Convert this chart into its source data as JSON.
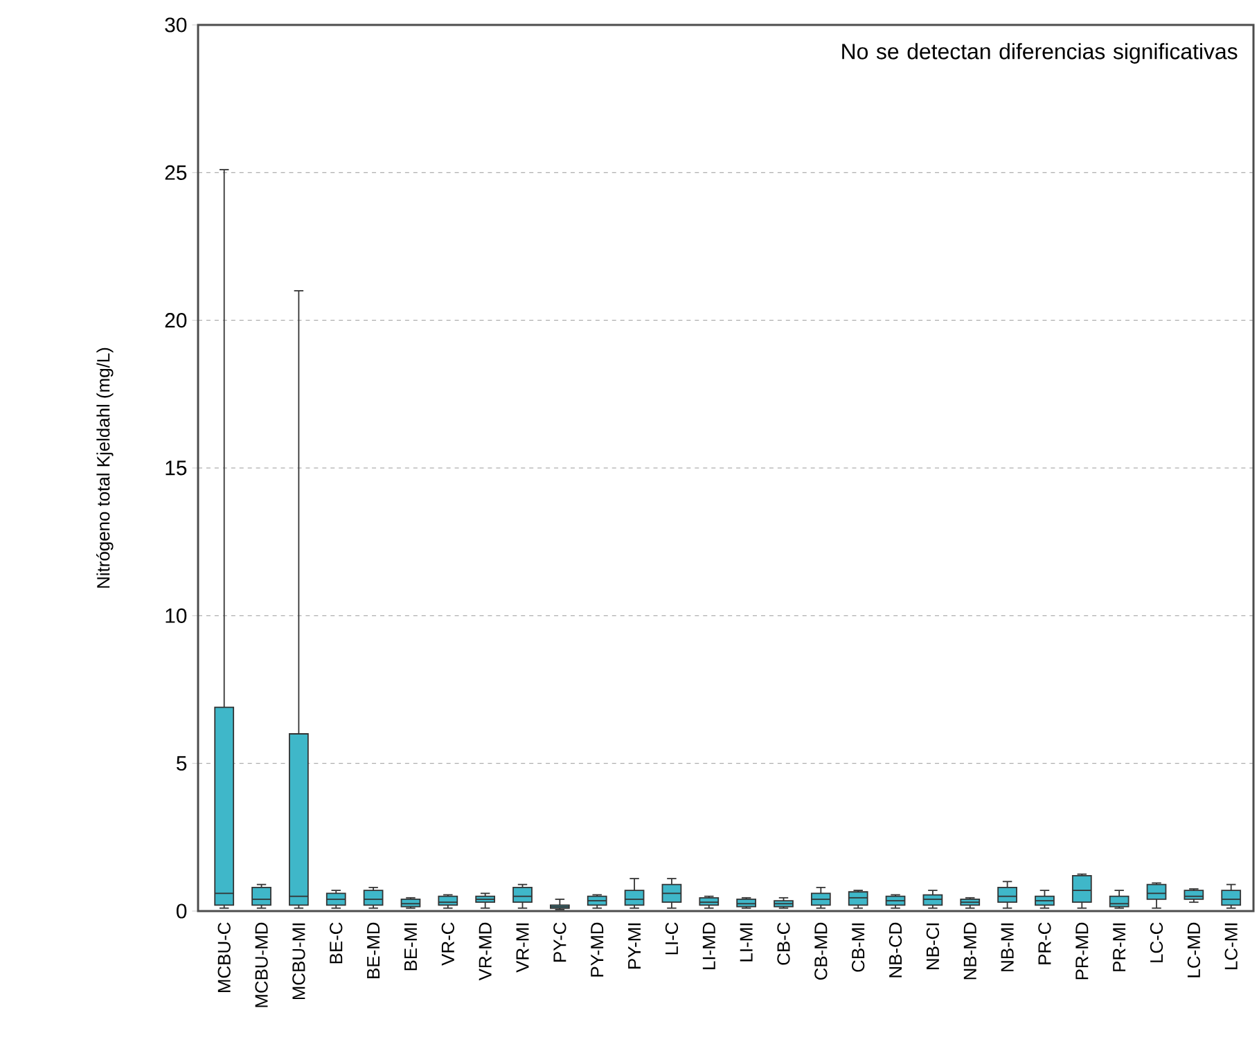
{
  "chart_data": {
    "type": "box",
    "ylabel": "Nitrógeno total Kjeldahl (mg/L)",
    "annotations": [
      "No se detectan diferencias significativas"
    ],
    "categories": [
      "MCBU-C",
      "MCBU-MD",
      "MCBU-MI",
      "BE-C",
      "BE-MD",
      "BE-MI",
      "VR-C",
      "VR-MD",
      "VR-MI",
      "PY-C",
      "PY-MD",
      "PY-MI",
      "LI-C",
      "LI-MD",
      "LI-MI",
      "CB-C",
      "CB-MD",
      "CB-MI",
      "NB-CD",
      "NB-CI",
      "NB-MD",
      "NB-MI",
      "PR-C",
      "PR-MD",
      "PR-MI",
      "LC-C",
      "LC-MD",
      "LC-MI"
    ],
    "color": "#3fb7c9",
    "boxes": [
      {
        "low": 0.1,
        "q1": 0.2,
        "median": 0.6,
        "q3": 6.9,
        "high": 25.1
      },
      {
        "low": 0.1,
        "q1": 0.2,
        "median": 0.4,
        "q3": 0.8,
        "high": 0.9
      },
      {
        "low": 0.1,
        "q1": 0.2,
        "median": 0.5,
        "q3": 6.0,
        "high": 21.0
      },
      {
        "low": 0.1,
        "q1": 0.2,
        "median": 0.4,
        "q3": 0.6,
        "high": 0.7
      },
      {
        "low": 0.1,
        "q1": 0.2,
        "median": 0.4,
        "q3": 0.7,
        "high": 0.8
      },
      {
        "low": 0.1,
        "q1": 0.15,
        "median": 0.25,
        "q3": 0.4,
        "high": 0.45
      },
      {
        "low": 0.1,
        "q1": 0.2,
        "median": 0.3,
        "q3": 0.5,
        "high": 0.55
      },
      {
        "low": 0.1,
        "q1": 0.3,
        "median": 0.4,
        "q3": 0.5,
        "high": 0.6
      },
      {
        "low": 0.1,
        "q1": 0.3,
        "median": 0.5,
        "q3": 0.8,
        "high": 0.9
      },
      {
        "low": 0.05,
        "q1": 0.1,
        "median": 0.15,
        "q3": 0.2,
        "high": 0.4
      },
      {
        "low": 0.1,
        "q1": 0.2,
        "median": 0.35,
        "q3": 0.5,
        "high": 0.55
      },
      {
        "low": 0.1,
        "q1": 0.2,
        "median": 0.4,
        "q3": 0.7,
        "high": 1.1
      },
      {
        "low": 0.1,
        "q1": 0.3,
        "median": 0.6,
        "q3": 0.9,
        "high": 1.1
      },
      {
        "low": 0.1,
        "q1": 0.2,
        "median": 0.3,
        "q3": 0.45,
        "high": 0.5
      },
      {
        "low": 0.1,
        "q1": 0.15,
        "median": 0.25,
        "q3": 0.4,
        "high": 0.45
      },
      {
        "low": 0.1,
        "q1": 0.15,
        "median": 0.25,
        "q3": 0.35,
        "high": 0.45
      },
      {
        "low": 0.1,
        "q1": 0.2,
        "median": 0.4,
        "q3": 0.6,
        "high": 0.8
      },
      {
        "low": 0.1,
        "q1": 0.2,
        "median": 0.45,
        "q3": 0.65,
        "high": 0.7
      },
      {
        "low": 0.1,
        "q1": 0.2,
        "median": 0.35,
        "q3": 0.5,
        "high": 0.55
      },
      {
        "low": 0.1,
        "q1": 0.2,
        "median": 0.4,
        "q3": 0.55,
        "high": 0.7
      },
      {
        "low": 0.1,
        "q1": 0.2,
        "median": 0.3,
        "q3": 0.4,
        "high": 0.45
      },
      {
        "low": 0.1,
        "q1": 0.3,
        "median": 0.5,
        "q3": 0.8,
        "high": 1.0
      },
      {
        "low": 0.1,
        "q1": 0.2,
        "median": 0.35,
        "q3": 0.5,
        "high": 0.7
      },
      {
        "low": 0.1,
        "q1": 0.3,
        "median": 0.7,
        "q3": 1.2,
        "high": 1.25
      },
      {
        "low": 0.1,
        "q1": 0.15,
        "median": 0.25,
        "q3": 0.5,
        "high": 0.7
      },
      {
        "low": 0.1,
        "q1": 0.4,
        "median": 0.6,
        "q3": 0.9,
        "high": 0.95
      },
      {
        "low": 0.3,
        "q1": 0.4,
        "median": 0.5,
        "q3": 0.7,
        "high": 0.75
      },
      {
        "low": 0.1,
        "q1": 0.2,
        "median": 0.4,
        "q3": 0.7,
        "high": 0.9
      }
    ],
    "ylim": [
      0,
      30
    ],
    "yticks": [
      0,
      5,
      10,
      15,
      20,
      25,
      30
    ],
    "grid": "y"
  }
}
